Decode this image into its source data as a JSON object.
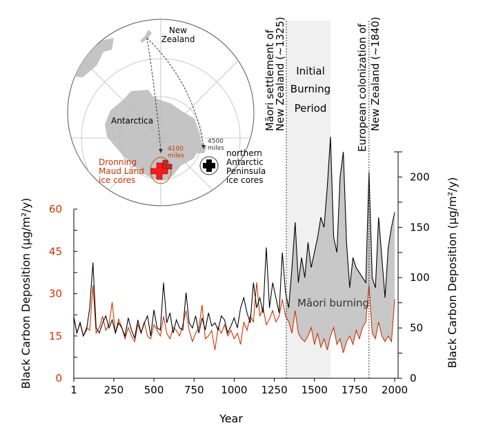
{
  "chart_data": {
    "type": "line",
    "xlabel": "Year",
    "ylabel_left": "Black Carbon Deposition (µg/m²/y)",
    "ylabel_right": "Black Carbon Deposition (µg/m²/y)",
    "xlim": [
      1,
      2000
    ],
    "ylim_left": [
      0,
      60
    ],
    "ylim_right": [
      0,
      225
    ],
    "x_ticks": [
      "1",
      "250",
      "500",
      "750",
      "1000",
      "1250",
      "1500",
      "1750",
      "2000"
    ],
    "left_ticks": [
      "0",
      "15",
      "30",
      "45",
      "60"
    ],
    "right_ticks": [
      "0",
      "50",
      "100",
      "150",
      "200"
    ],
    "grid": false,
    "colors": {
      "left_axis": "#cc3300",
      "right_axis": "#000000",
      "fill": "#c8c8c8",
      "period_shade": "#f0f0f0"
    },
    "x": [
      1,
      20,
      40,
      60,
      80,
      100,
      120,
      140,
      160,
      180,
      200,
      220,
      240,
      260,
      280,
      300,
      320,
      340,
      360,
      380,
      400,
      420,
      440,
      460,
      480,
      500,
      520,
      540,
      560,
      580,
      600,
      620,
      640,
      660,
      680,
      700,
      720,
      740,
      760,
      780,
      800,
      820,
      840,
      860,
      880,
      900,
      920,
      940,
      960,
      980,
      1000,
      1020,
      1040,
      1060,
      1080,
      1100,
      1120,
      1140,
      1160,
      1180,
      1200,
      1220,
      1240,
      1260,
      1280,
      1300,
      1320,
      1340,
      1360,
      1380,
      1400,
      1420,
      1440,
      1460,
      1480,
      1500,
      1520,
      1540,
      1560,
      1580,
      1600,
      1620,
      1640,
      1660,
      1680,
      1700,
      1720,
      1740,
      1760,
      1780,
      1800,
      1820,
      1840,
      1860,
      1880,
      1900,
      1920,
      1940,
      1960,
      1980,
      2000
    ],
    "series": [
      {
        "axis": "right",
        "color": "#000000",
        "values": [
          60,
          45,
          55,
          42,
          48,
          70,
          115,
          50,
          45,
          55,
          62,
          50,
          58,
          45,
          55,
          50,
          42,
          60,
          48,
          40,
          58,
          45,
          55,
          62,
          42,
          68,
          50,
          48,
          95,
          55,
          65,
          45,
          58,
          50,
          48,
          85,
          55,
          50,
          62,
          45,
          60,
          48,
          65,
          52,
          55,
          48,
          62,
          58,
          45,
          52,
          60,
          50,
          70,
          80,
          65,
          55,
          95,
          70,
          80,
          65,
          130,
          70,
          95,
          80,
          65,
          125,
          85,
          70,
          110,
          155,
          95,
          120,
          100,
          135,
          110,
          125,
          140,
          160,
          150,
          190,
          240,
          140,
          125,
          200,
          225,
          135,
          90,
          120,
          110,
          105,
          100,
          95,
          205,
          100,
          90,
          160,
          120,
          80,
          130,
          150,
          165
        ]
      },
      {
        "axis": "left",
        "color": "#cc3300",
        "values": [
          22,
          16,
          20,
          15,
          18,
          17,
          33,
          16,
          18,
          22,
          17,
          19,
          27,
          16,
          21,
          18,
          14,
          18,
          15,
          13,
          19,
          16,
          20,
          15,
          14,
          19,
          17,
          15,
          22,
          16,
          14,
          18,
          17,
          15,
          19,
          24,
          17,
          13,
          16,
          18,
          26,
          14,
          15,
          17,
          10,
          18,
          16,
          19,
          15,
          17,
          14,
          16,
          12,
          20,
          17,
          22,
          20,
          34,
          22,
          25,
          19,
          21,
          24,
          20,
          22,
          28,
          22,
          20,
          16,
          24,
          16,
          14,
          13,
          15,
          18,
          12,
          16,
          11,
          14,
          10,
          15,
          18,
          12,
          14,
          9,
          13,
          15,
          12,
          17,
          14,
          18,
          20,
          33,
          16,
          14,
          20,
          15,
          13,
          15,
          13,
          28
        ]
      }
    ],
    "annotations": {
      "maori_settlement": [
        "Māori settlement of",
        "New Zealand (~1325)"
      ],
      "maori_settlement_year": 1325,
      "initial_burning": [
        "Initial",
        "Burning",
        "Period"
      ],
      "initial_burning_range": [
        1325,
        1600
      ],
      "european_colonization": [
        "European colonization of",
        "New Zealand (~1840)"
      ],
      "european_colonization_year": 1840,
      "fill_label": "Māori burning"
    }
  },
  "map": {
    "new_zealand": [
      "New",
      "Zealand"
    ],
    "antarctica": "Antarctica",
    "dist_dml": [
      "4100",
      "miles"
    ],
    "dist_nap": [
      "4500",
      "miles"
    ],
    "dml_label": [
      "Dronning",
      "Maud Land",
      "ice cores"
    ],
    "nap_label": [
      "northern",
      "Antarctic",
      "Peninsula",
      "ice cores"
    ]
  }
}
